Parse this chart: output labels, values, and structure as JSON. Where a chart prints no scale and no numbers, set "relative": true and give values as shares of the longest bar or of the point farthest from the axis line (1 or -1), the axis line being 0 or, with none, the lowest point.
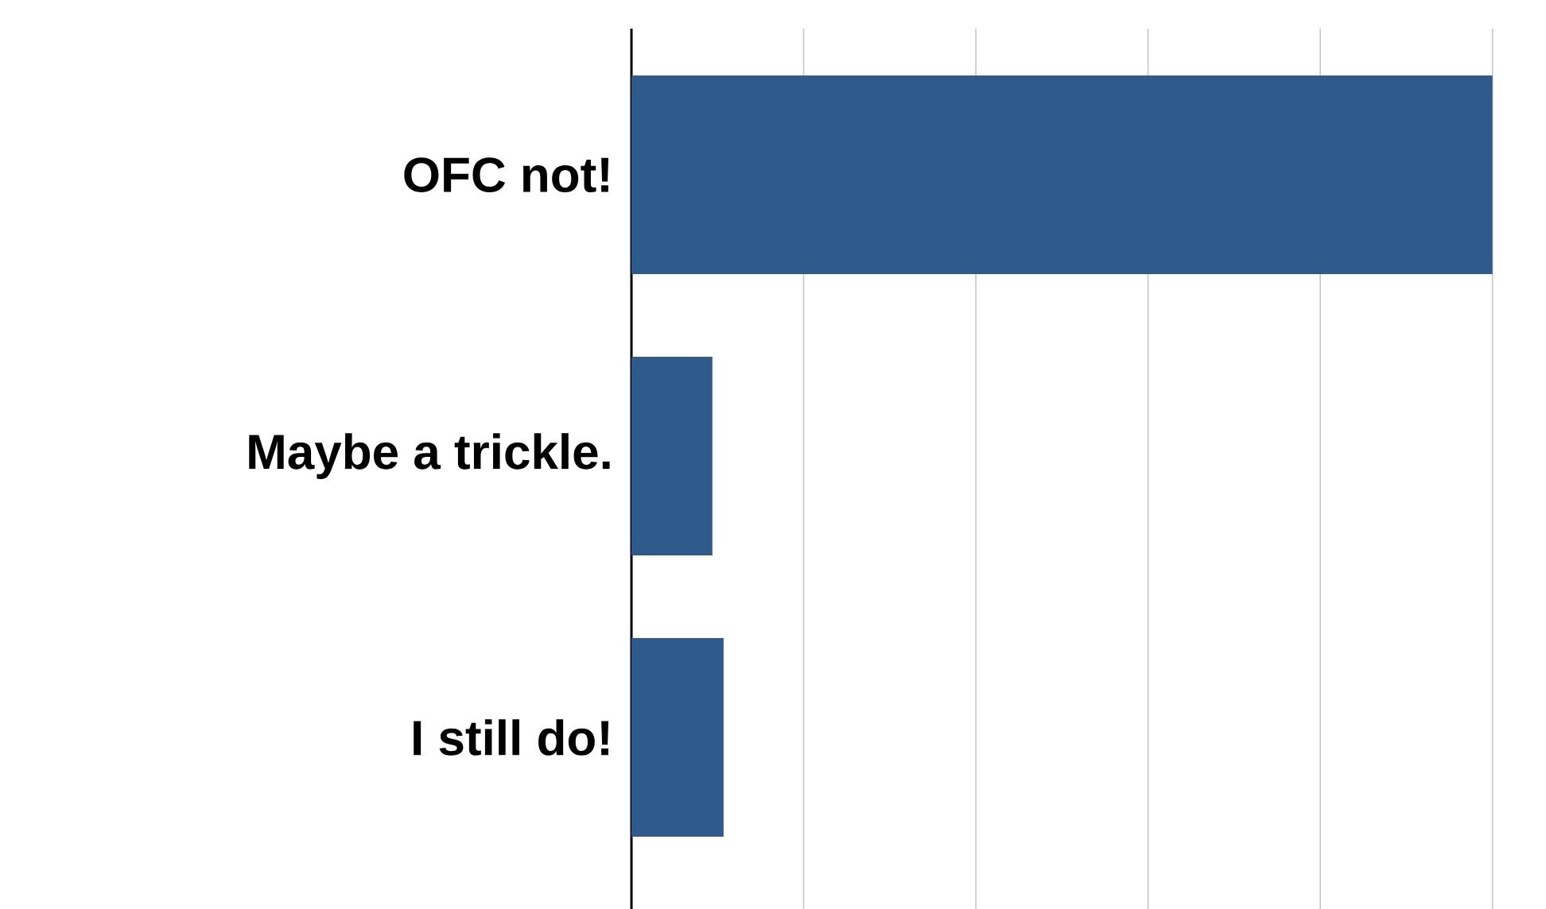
{
  "chart_data": {
    "type": "bar",
    "orientation": "horizontal",
    "relative": true,
    "categories": [
      "OFC not!",
      "Maybe a trickle.",
      "I still do!"
    ],
    "values": [
      1,
      0.094,
      0.107
    ],
    "color": "#2f5a8c",
    "grid": "x"
  }
}
